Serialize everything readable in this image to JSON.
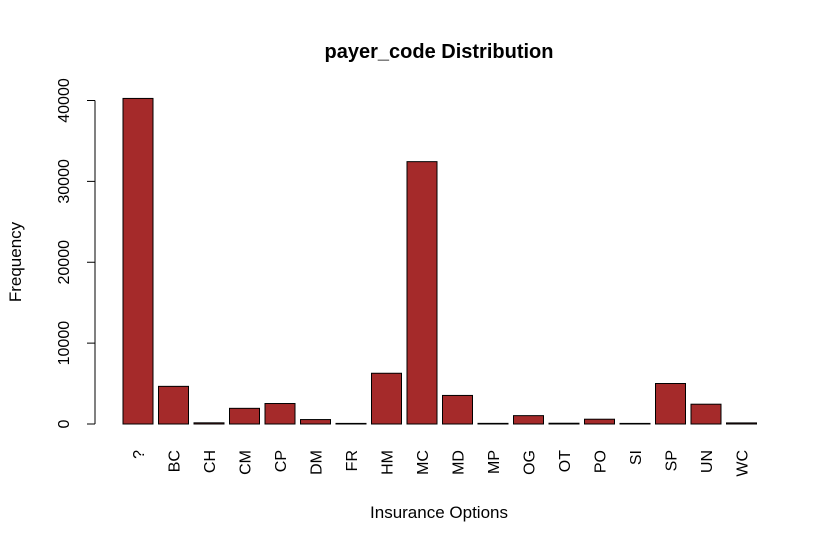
{
  "chart_data": {
    "type": "bar",
    "title": "payer_code Distribution",
    "xlabel": "Insurance Options",
    "ylabel": "Frequency",
    "categories": [
      "?",
      "BC",
      "CH",
      "CM",
      "CP",
      "DM",
      "FR",
      "HM",
      "MC",
      "MD",
      "MP",
      "OG",
      "OT",
      "PO",
      "SI",
      "SP",
      "UN",
      "WC"
    ],
    "values": [
      40256,
      4655,
      146,
      1937,
      2533,
      549,
      1,
      6274,
      32439,
      3532,
      79,
      1033,
      95,
      592,
      55,
      5007,
      2448,
      135
    ],
    "y_ticks": [
      0,
      10000,
      20000,
      30000,
      40000
    ],
    "y_tick_labels": [
      "0",
      "10000",
      "20000",
      "30000",
      "40000"
    ],
    "ylim": [
      0,
      40256
    ],
    "bar_color": "#a52a2a",
    "grid": false
  }
}
